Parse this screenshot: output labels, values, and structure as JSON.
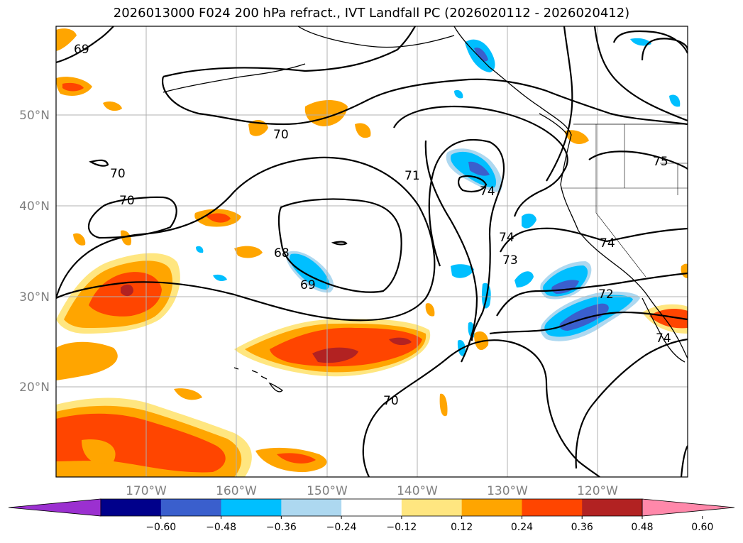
{
  "title": "2026013000 F024 200 hPa refract., IVT Landfall PC (2026020112 - 2026020412)",
  "map": {
    "lat_labels": [
      "50°N",
      "40°N",
      "30°N",
      "20°N"
    ],
    "lon_labels": [
      "170°W",
      "160°W",
      "150°W",
      "140°W",
      "130°W",
      "120°W"
    ],
    "contour_labels": [
      "69",
      "70",
      "70",
      "70",
      "68",
      "69",
      "71",
      "74",
      "74",
      "73",
      "74",
      "72",
      "75",
      "70",
      "74"
    ]
  },
  "colorbar": {
    "ticks": [
      "−0.60",
      "−0.48",
      "−0.36",
      "−0.24",
      "−0.12",
      "0.12",
      "0.24",
      "0.36",
      "0.48",
      "0.60"
    ],
    "colors": [
      "#9b30d0",
      "#00008b",
      "#3a5fcd",
      "#00bfff",
      "#add8f0",
      "#ffffff",
      "#ffe680",
      "#ffa500",
      "#ff4500",
      "#b22222",
      "#ff88aa"
    ]
  }
}
